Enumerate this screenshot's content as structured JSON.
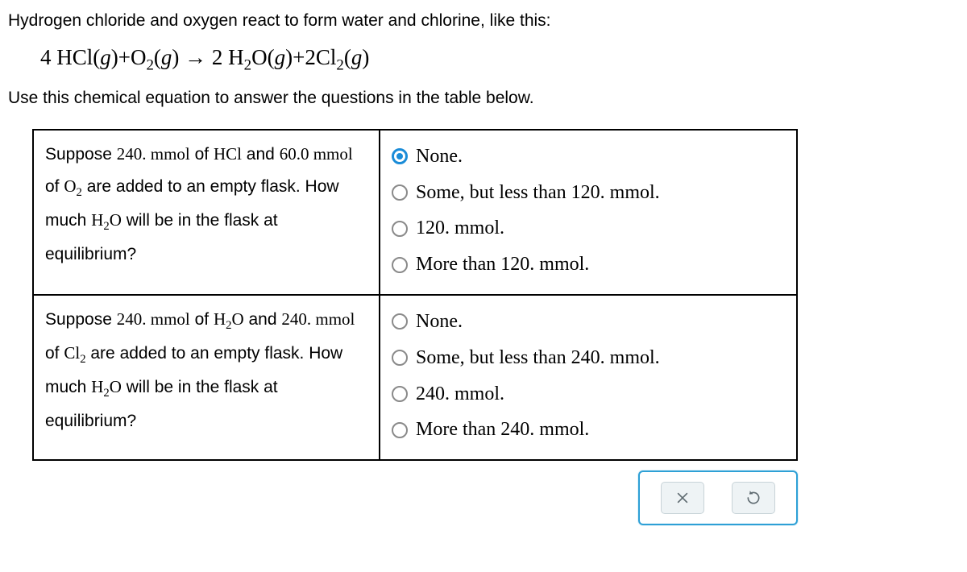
{
  "intro": "Hydrogen chloride and oxygen react to form water and chlorine, like this:",
  "equation_html": "4 HCl(<i>g</i>)+O<sub>2</sub>(<i>g</i>) → 2 H<sub>2</sub>O(<i>g</i>)+2Cl<sub>2</sub>(<i>g</i>)",
  "instruction": "Use this chemical equation to answer the questions in the table below.",
  "questions": [
    {
      "prompt_html": "Suppose <span class='serif'>240. mmol</span> of <span class='serif'>HCl</span> and <span class='serif'>60.0 mmol</span> of <span class='serif'>O<sub>2</sub></span> are added to an empty flask. How much <span class='serif'>H<sub>2</sub>O</span> will be in the flask at equilibrium?",
      "options": [
        {
          "label": "None.",
          "selected": true
        },
        {
          "label": "Some, but less than 120. mmol.",
          "selected": false
        },
        {
          "label": "120. mmol.",
          "selected": false
        },
        {
          "label": "More than 120. mmol.",
          "selected": false
        }
      ]
    },
    {
      "prompt_html": "Suppose <span class='serif'>240. mmol</span> of <span class='serif'>H<sub>2</sub>O</span> and <span class='serif'>240. mmol</span> of <span class='serif'>Cl<sub>2</sub></span> are added to an empty flask. How much <span class='serif'>H<sub>2</sub>O</span> will be in the flask at equilibrium?",
      "options": [
        {
          "label": "None.",
          "selected": false
        },
        {
          "label": "Some, but less than 240. mmol.",
          "selected": false
        },
        {
          "label": "240. mmol.",
          "selected": false
        },
        {
          "label": "More than 240. mmol.",
          "selected": false
        }
      ]
    }
  ],
  "buttons": {
    "close_title": "Close",
    "reset_title": "Reset"
  },
  "colors": {
    "accent": "#1a8cd8",
    "panel_border": "#2ea0d6",
    "btn_bg": "#eef3f5"
  }
}
